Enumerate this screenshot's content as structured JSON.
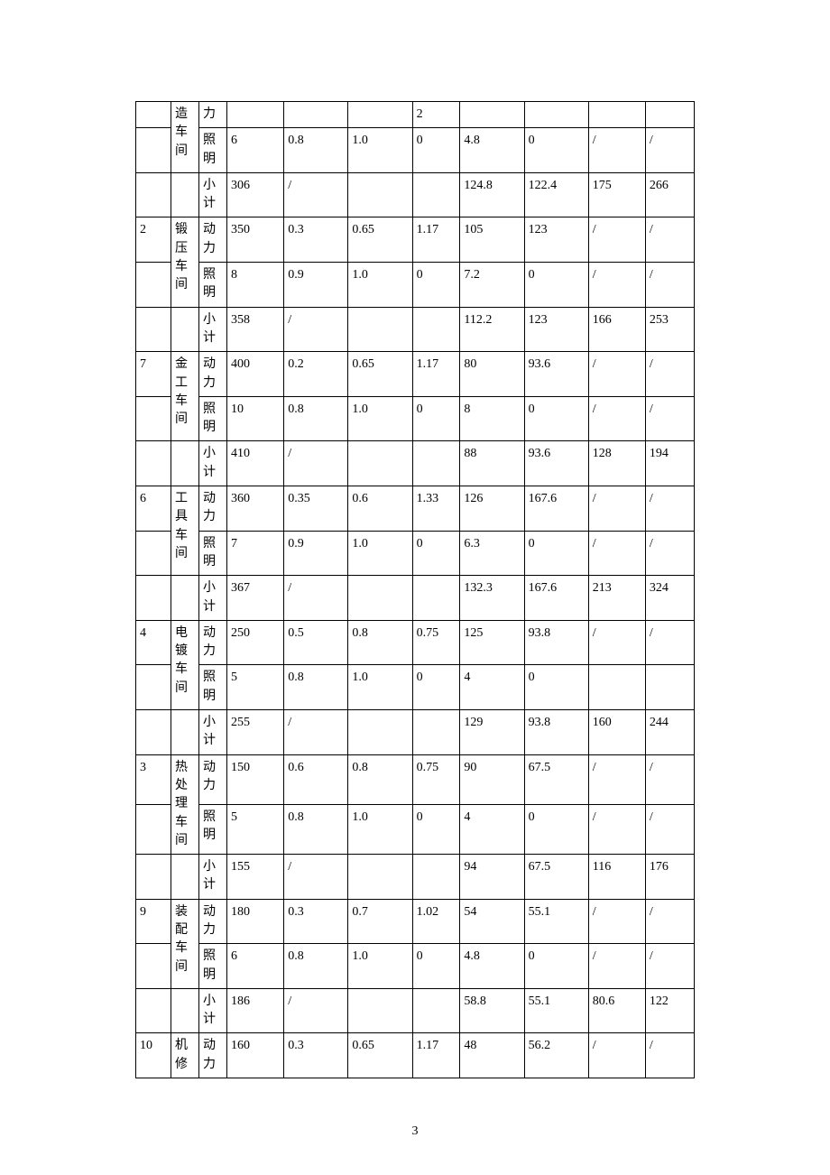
{
  "page_number": "3",
  "rows": [
    {
      "c0": "",
      "c1": "造车间",
      "c2": "力",
      "c3": "",
      "c4": "",
      "c5": "",
      "c6": "2",
      "c7": "",
      "c8": "",
      "c9": "",
      "c10": "",
      "span1": 2
    },
    {
      "c0": "",
      "c1": "",
      "c2": "照明",
      "c3": "6",
      "c4": "0.8",
      "c5": "1.0",
      "c6": "0",
      "c7": "4.8",
      "c8": "0",
      "c9": "/",
      "c10": "/"
    },
    {
      "c0": "",
      "c1": "",
      "c2": "小计",
      "c3": "306",
      "c4": "/",
      "c5": "",
      "c6": "",
      "c7": "124.8",
      "c8": "122.4",
      "c9": "175",
      "c10": "266"
    },
    {
      "c0": "2",
      "c1": "锻压车间",
      "c2": "动力",
      "c3": "350",
      "c4": "0.3",
      "c5": "0.65",
      "c6": "1.17",
      "c7": "105",
      "c8": "123",
      "c9": "/",
      "c10": "/",
      "span1": 2
    },
    {
      "c0": "",
      "c1": "",
      "c2": "照明",
      "c3": "8",
      "c4": "0.9",
      "c5": "1.0",
      "c6": "0",
      "c7": "7.2",
      "c8": "0",
      "c9": "/",
      "c10": "/"
    },
    {
      "c0": "",
      "c1": "",
      "c2": "小计",
      "c3": "358",
      "c4": "/",
      "c5": "",
      "c6": "",
      "c7": "112.2",
      "c8": "123",
      "c9": "166",
      "c10": "253"
    },
    {
      "c0": "7",
      "c1": "金工车间",
      "c2": "动力",
      "c3": "400",
      "c4": "0.2",
      "c5": "0.65",
      "c6": "1.17",
      "c7": "80",
      "c8": "93.6",
      "c9": "/",
      "c10": "/",
      "span1": 2
    },
    {
      "c0": "",
      "c1": "",
      "c2": "照明",
      "c3": "10",
      "c4": "0.8",
      "c5": "1.0",
      "c6": "0",
      "c7": "8",
      "c8": "0",
      "c9": "/",
      "c10": "/"
    },
    {
      "c0": "",
      "c1": "",
      "c2": "小计",
      "c3": "410",
      "c4": "/",
      "c5": "",
      "c6": "",
      "c7": "88",
      "c8": "93.6",
      "c9": "128",
      "c10": "194"
    },
    {
      "c0": "6",
      "c1": "工具车间",
      "c2": "动力",
      "c3": "360",
      "c4": "0.35",
      "c5": "0.6",
      "c6": "1.33",
      "c7": "126",
      "c8": "167.6",
      "c9": "/",
      "c10": "/",
      "span1": 2
    },
    {
      "c0": "",
      "c1": "",
      "c2": "照明",
      "c3": "7",
      "c4": "0.9",
      "c5": "1.0",
      "c6": "0",
      "c7": "6.3",
      "c8": "0",
      "c9": "/",
      "c10": "/"
    },
    {
      "c0": "",
      "c1": "",
      "c2": "小计",
      "c3": "367",
      "c4": "/",
      "c5": "",
      "c6": "",
      "c7": "132.3",
      "c8": "167.6",
      "c9": "213",
      "c10": "324"
    },
    {
      "c0": "4",
      "c1": "电镀车间",
      "c2": "动力",
      "c3": "250",
      "c4": "0.5",
      "c5": "0.8",
      "c6": "0.75",
      "c7": "125",
      "c8": "93.8",
      "c9": "/",
      "c10": "/",
      "span1": 2
    },
    {
      "c0": "",
      "c1": "",
      "c2": "照明",
      "c3": "5",
      "c4": "0.8",
      "c5": "1.0",
      "c6": "0",
      "c7": "4",
      "c8": "0",
      "c9": "",
      "c10": ""
    },
    {
      "c0": "",
      "c1": "",
      "c2": "小计",
      "c3": "255",
      "c4": "/",
      "c5": "",
      "c6": "",
      "c7": "129",
      "c8": "93.8",
      "c9": "160",
      "c10": "244"
    },
    {
      "c0": "3",
      "c1": "热处理车间",
      "c2": "动力",
      "c3": "150",
      "c4": "0.6",
      "c5": "0.8",
      "c6": "0.75",
      "c7": "90",
      "c8": "67.5",
      "c9": "/",
      "c10": "/",
      "span1": 2
    },
    {
      "c0": "",
      "c1": "",
      "c2": "照明",
      "c3": "5",
      "c4": "0.8",
      "c5": "1.0",
      "c6": "0",
      "c7": "4",
      "c8": "0",
      "c9": "/",
      "c10": "/"
    },
    {
      "c0": "",
      "c1": "",
      "c2": "小计",
      "c3": "155",
      "c4": "/",
      "c5": "",
      "c6": "",
      "c7": "94",
      "c8": "67.5",
      "c9": "116",
      "c10": "176"
    },
    {
      "c0": "9",
      "c1": "装配车间",
      "c2": "动力",
      "c3": "180",
      "c4": "0.3",
      "c5": "0.7",
      "c6": "1.02",
      "c7": "54",
      "c8": "55.1",
      "c9": "/",
      "c10": "/",
      "span1": 2
    },
    {
      "c0": "",
      "c1": "",
      "c2": "照明",
      "c3": "6",
      "c4": "0.8",
      "c5": "1.0",
      "c6": "0",
      "c7": "4.8",
      "c8": "0",
      "c9": "/",
      "c10": "/"
    },
    {
      "c0": "",
      "c1": "",
      "c2": "小计",
      "c3": "186",
      "c4": "/",
      "c5": "",
      "c6": "",
      "c7": "58.8",
      "c8": "55.1",
      "c9": "80.6",
      "c10": "122"
    },
    {
      "c0": "10",
      "c1": "机修",
      "c2": "动力",
      "c3": "160",
      "c4": "0.3",
      "c5": "0.65",
      "c6": "1.17",
      "c7": "48",
      "c8": "56.2",
      "c9": "/",
      "c10": "/"
    }
  ]
}
